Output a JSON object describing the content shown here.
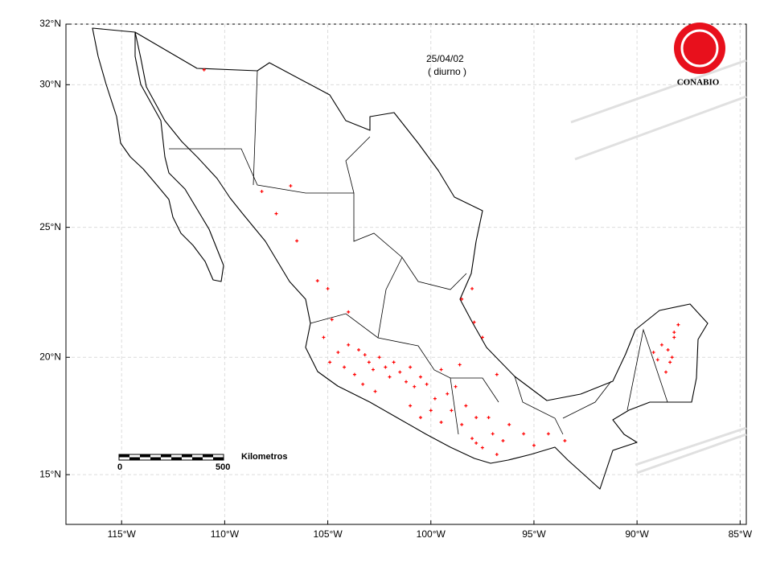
{
  "chart_data": {
    "type": "scatter",
    "date": "25/04/02",
    "subtitle": "( diurno )",
    "logo": "CONABIO",
    "scale_label": "Kilometros",
    "scale_start": "0",
    "scale_end": "500",
    "color": "#ff0000",
    "xlim": [
      -117.7,
      -84.7
    ],
    "ylim": [
      12.7,
      32
    ],
    "xticks": [
      {
        "value": -115,
        "label": "115°W"
      },
      {
        "value": -110,
        "label": "110°W"
      },
      {
        "value": -105,
        "label": "105°W"
      },
      {
        "value": -100,
        "label": "100°W"
      },
      {
        "value": -95,
        "label": "95°W"
      },
      {
        "value": -90,
        "label": "90°W"
      },
      {
        "value": -85,
        "label": "85°W"
      }
    ],
    "yticks": [
      {
        "value": 15,
        "label": "15°N"
      },
      {
        "value": 20,
        "label": "20°N"
      },
      {
        "value": 25,
        "label": "25°N"
      },
      {
        "value": 30,
        "label": "30°N"
      },
      {
        "value": 32,
        "label": "32°N"
      }
    ],
    "grid": true,
    "x": [
      -104.9,
      -104.5,
      -104,
      -103.5,
      -103.2,
      -103,
      -102.8,
      -102.5,
      -102.2,
      -102,
      -101.8,
      -101.5,
      -101.2,
      -101,
      -100.8,
      -100.5,
      -100.2,
      -103.7,
      -104.2,
      -103.3,
      -102.7,
      -105.2,
      -104.8,
      -105,
      -104,
      -101,
      -100.5,
      -100,
      -99.5,
      -99.8,
      -99.2,
      -99,
      -98.5,
      -98.8,
      -98.3,
      -97.8,
      -99.5,
      -98.6,
      -98,
      -97.8,
      -97.5,
      -97,
      -96.5,
      -96.2,
      -95.5,
      -96.8,
      -97.2,
      -95,
      -97.5,
      -98.5,
      -98,
      -97.9,
      -96.8,
      -108.2,
      -107.5,
      -106.8,
      -106.5,
      -105.5,
      -88,
      -88.2,
      -88.5,
      -88.3,
      -88.8,
      -88.4,
      -88.6,
      -89.2,
      -88.2,
      -89,
      -93.5,
      -94.3,
      -111
    ],
    "values": [
      19.8,
      20.2,
      20.5,
      20.3,
      20.1,
      19.8,
      19.5,
      20,
      19.6,
      19.2,
      19.8,
      19.4,
      19,
      19.6,
      18.8,
      19.2,
      18.9,
      19.3,
      19.6,
      18.9,
      18.6,
      20.8,
      21.5,
      22.7,
      21.8,
      18,
      17.5,
      17.8,
      17.3,
      18.3,
      18.5,
      17.8,
      17.2,
      18.8,
      18,
      17.5,
      19.5,
      19.7,
      16.6,
      16.4,
      16.2,
      16.8,
      16.5,
      17.2,
      16.8,
      15.9,
      17.5,
      16.3,
      20.8,
      22.3,
      22.7,
      21.4,
      19.3,
      26.3,
      25.5,
      26.5,
      24.5,
      23,
      21.3,
      20.8,
      20.3,
      20,
      20.5,
      19.8,
      19.4,
      20.2,
      21,
      19.9,
      16.5,
      16.8,
      30.5
    ]
  }
}
